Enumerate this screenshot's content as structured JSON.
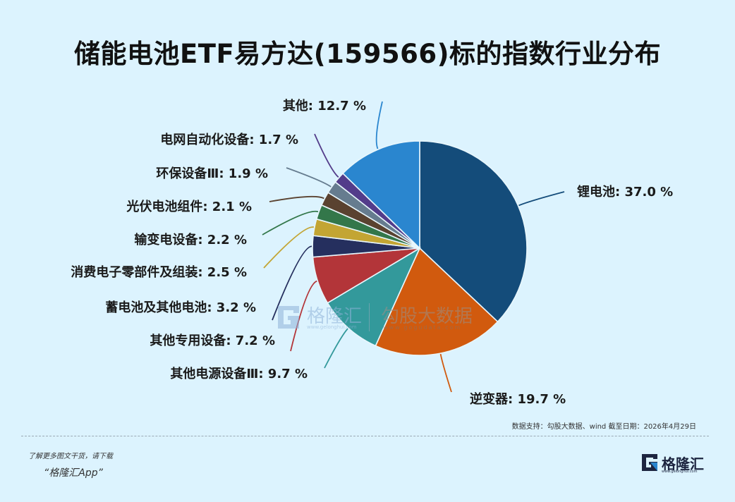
{
  "header": {
    "title": "储能电池ETF易方达(159566)标的指数行业分布"
  },
  "chart_data": {
    "type": "pie",
    "title": "储能电池ETF易方达(159566)标的指数行业分布",
    "start_angle": "12 o'clock, clockwise",
    "unit": "%",
    "slices": [
      {
        "label": "锂电池",
        "value": 37.0,
        "color": "#144c7a",
        "text": "锂电池: 37.0 %"
      },
      {
        "label": "逆变器",
        "value": 19.7,
        "color": "#d15a0e",
        "text": "逆变器: 19.7 %"
      },
      {
        "label": "其他电源设备Ⅲ",
        "value": 9.7,
        "color": "#33999b",
        "text": "其他电源设备Ⅲ: 9.7 %"
      },
      {
        "label": "其他专用设备",
        "value": 7.2,
        "color": "#b33539",
        "text": "其他专用设备: 7.2 %"
      },
      {
        "label": "蓄电池及其他电池",
        "value": 3.2,
        "color": "#252f5e",
        "text": "蓄电池及其他电池: 3.2 %"
      },
      {
        "label": "消费电子零部件及组装",
        "value": 2.5,
        "color": "#c3a533",
        "text": "消费电子零部件及组装: 2.5 %"
      },
      {
        "label": "输变电设备",
        "value": 2.2,
        "color": "#33774a",
        "text": "输变电设备: 2.2 %"
      },
      {
        "label": "光伏电池组件",
        "value": 2.1,
        "color": "#5a4230",
        "text": "光伏电池组件: 2.1 %"
      },
      {
        "label": "环保设备Ⅲ",
        "value": 1.9,
        "color": "#667c8f",
        "text": "环保设备Ⅲ: 1.9 %"
      },
      {
        "label": "电网自动化设备",
        "value": 1.7,
        "color": "#533c8a",
        "text": "电网自动化设备: 1.7 %"
      },
      {
        "label": "其他",
        "value": 12.7,
        "color": "#2a86cf",
        "text": "其他: 12.7 %"
      }
    ]
  },
  "footer": {
    "source": "数据支持：勾股大数据、wind 截至日期：2026年4月29日",
    "promo_line1": "了解更多图文干货，请下载",
    "promo_line2": "“格隆汇App”",
    "logo_text": "格隆汇",
    "logo_url": "www.gelonghui.com"
  },
  "watermark": {
    "brand1": "格隆汇",
    "brand1_url": "www.gelonghui.com",
    "brand2": "勾股大数据",
    "brand2_url": "www.gogudata.com"
  }
}
